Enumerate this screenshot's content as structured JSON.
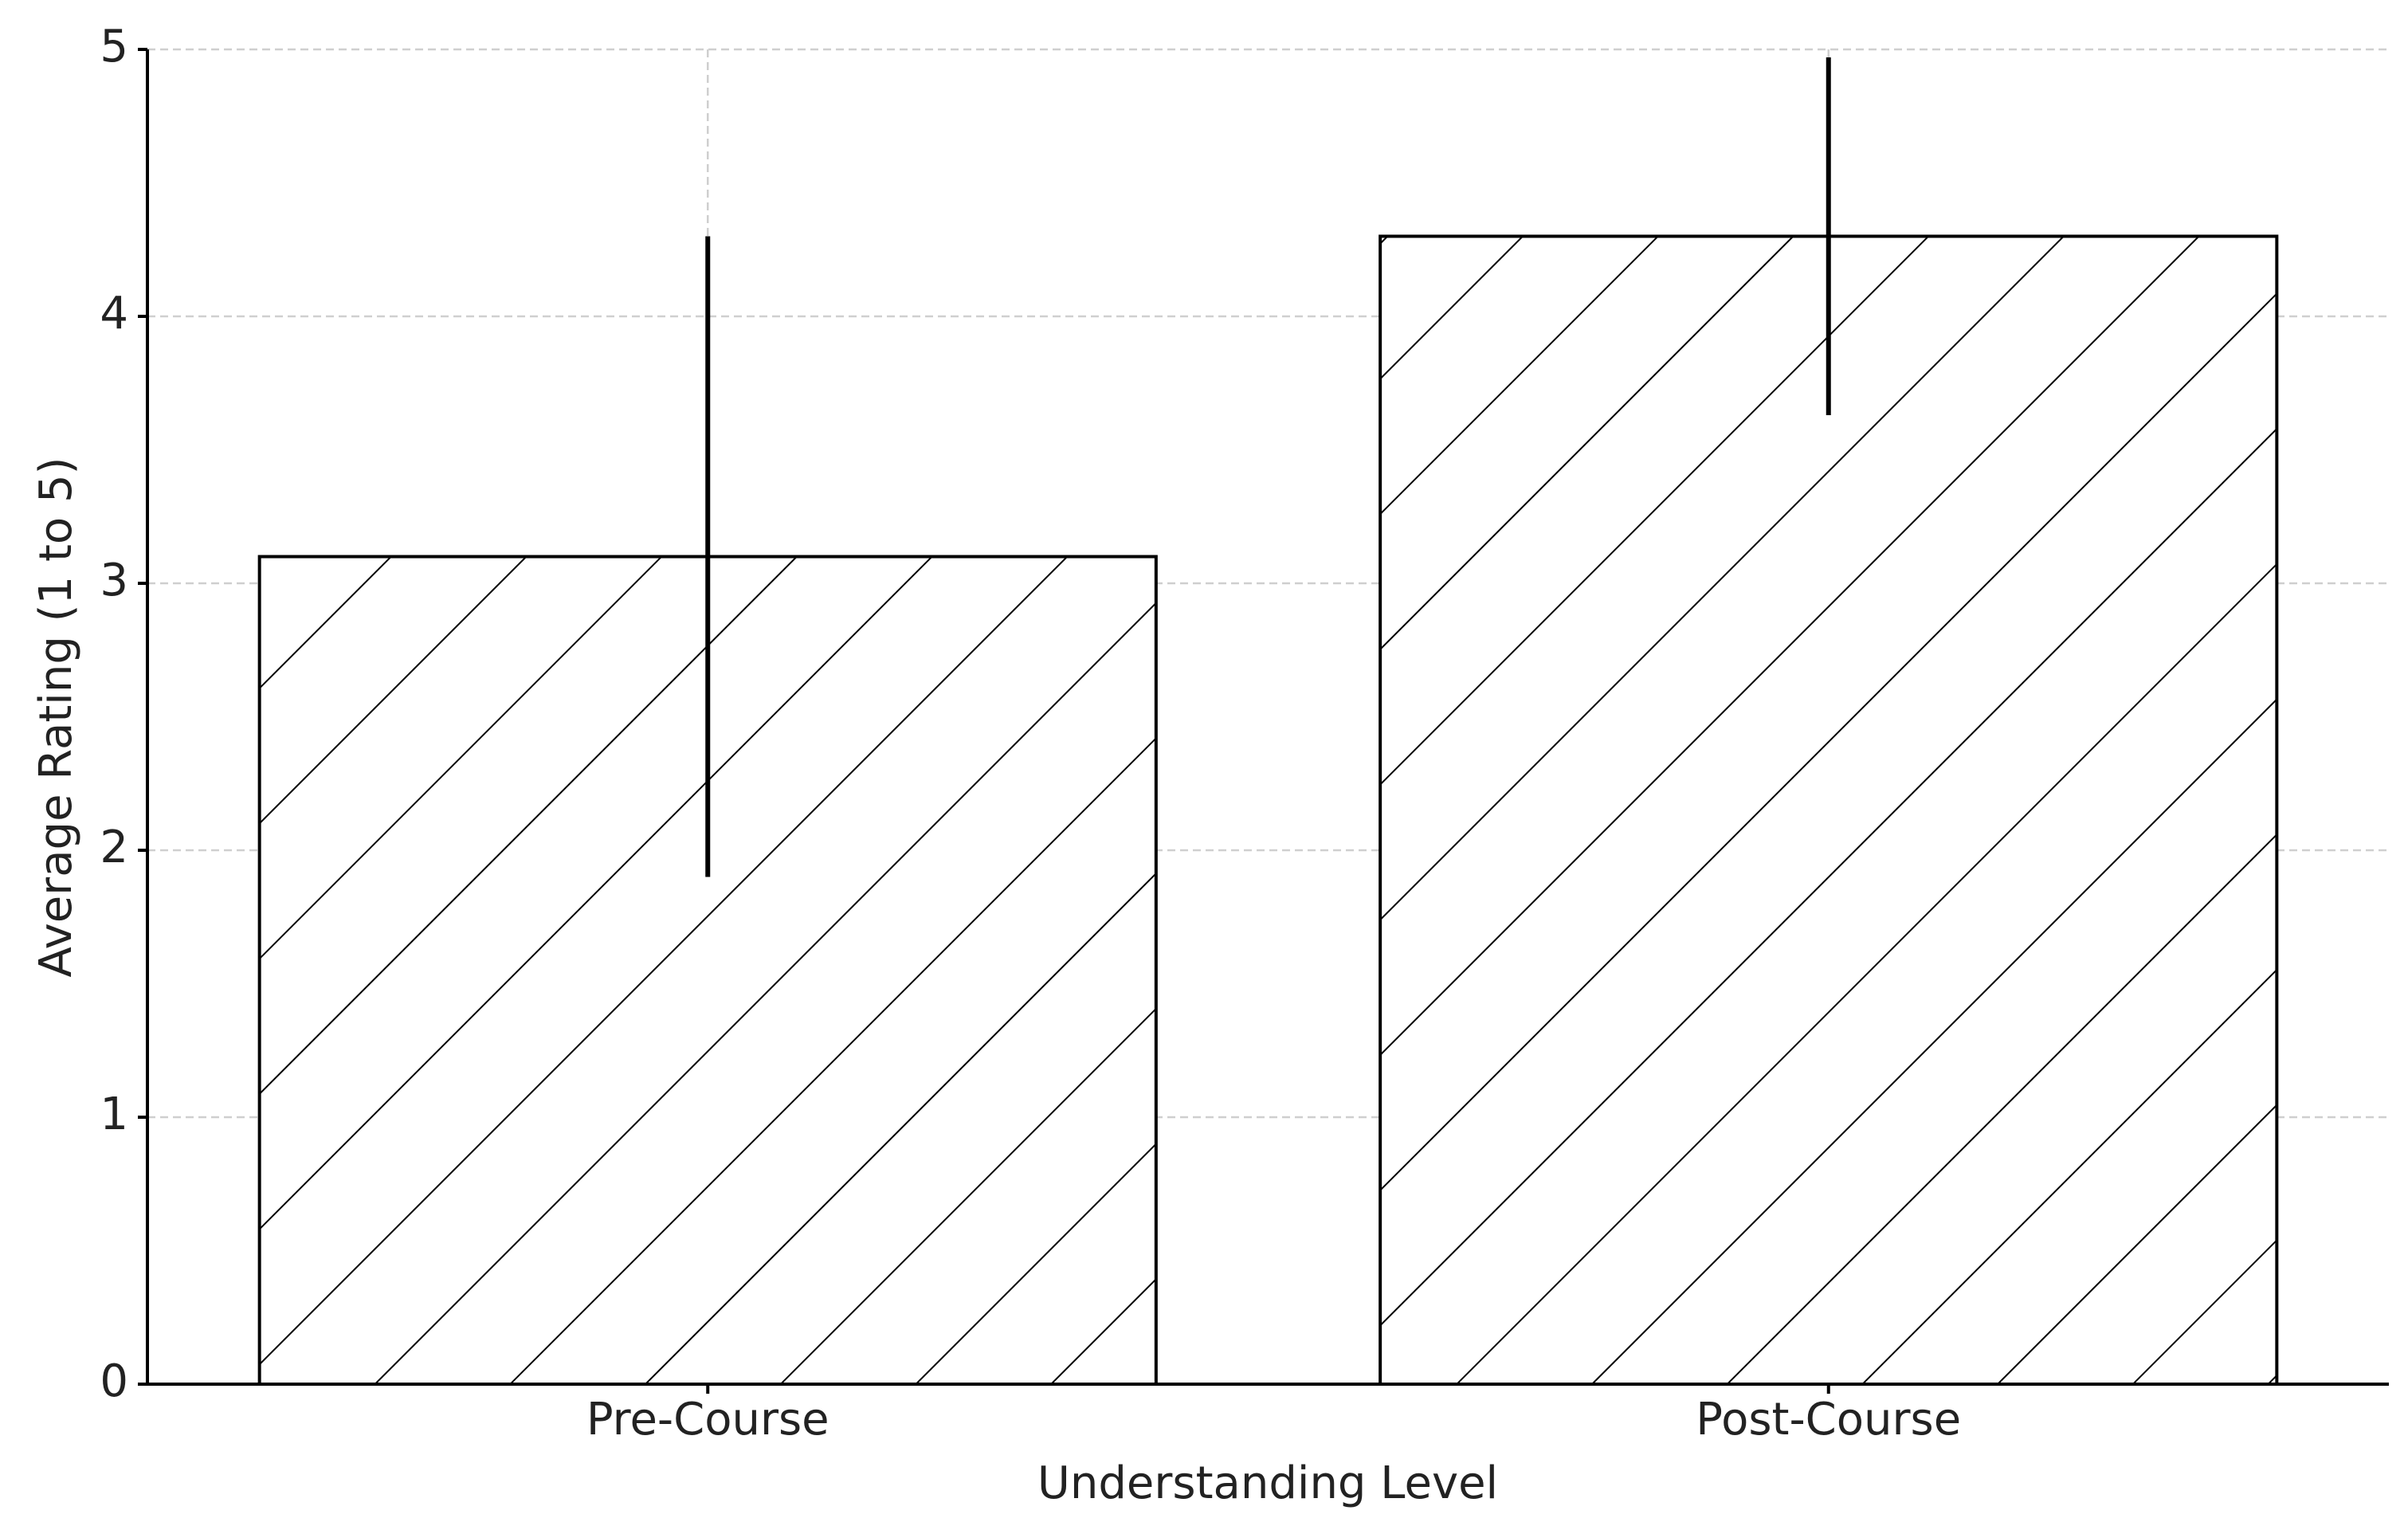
{
  "chart_data": {
    "type": "bar",
    "x_label": "Understanding Level",
    "y_label": "Average Rating (1 to 5)",
    "categories": [
      "Pre-Course",
      "Post-Course"
    ],
    "values": [
      3.1,
      4.3
    ],
    "errors": [
      1.2,
      0.67
    ],
    "color": "#ffffff",
    "edge_color": "#000000",
    "hatch": "/",
    "ylim": [
      0,
      5
    ],
    "yticks": [
      0,
      1,
      2,
      3,
      4,
      5
    ],
    "grid": true
  }
}
